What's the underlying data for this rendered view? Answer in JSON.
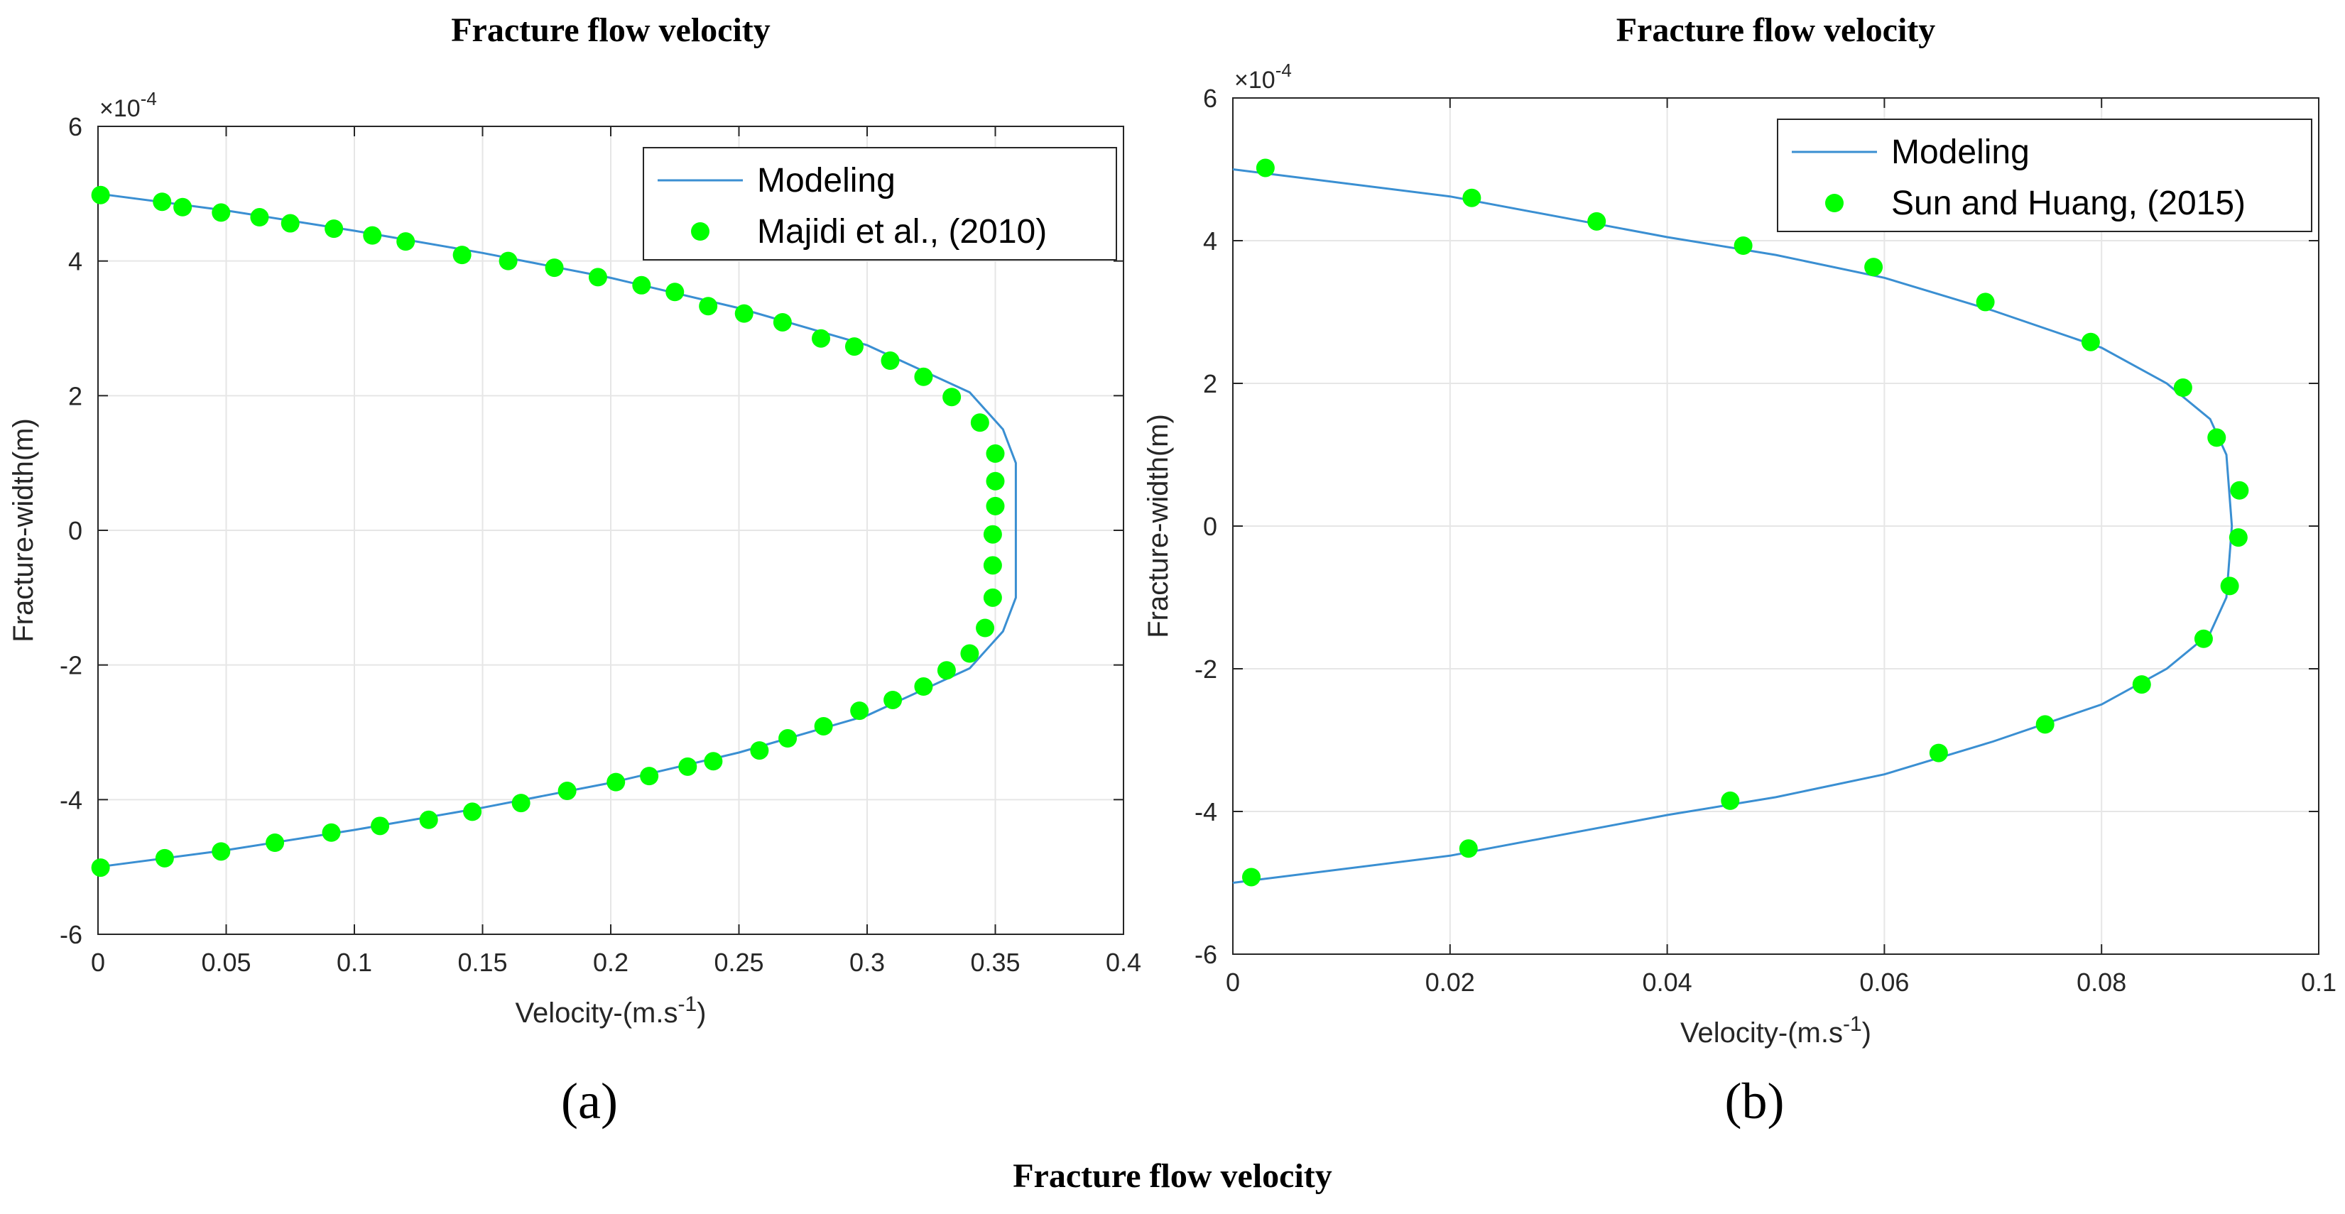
{
  "figure": {
    "caption": "Fracture flow velocity",
    "colors": {
      "model": "#3a8fd2",
      "observed": "#00ff00"
    }
  },
  "chart_data": [
    {
      "type": "line",
      "panel_label": "(a)",
      "title": "Fracture flow velocity",
      "xlabel": "Velocity-(m.s",
      "xlabel_sup": "-1",
      "xlabel_tail": ")",
      "ylabel": "Fracture-width(m)",
      "y_exponent": "×10",
      "y_exponent_sup": "-4",
      "xlim": [
        0,
        0.4
      ],
      "ylim": [
        -6,
        6
      ],
      "x_ticks": [
        0,
        0.05,
        0.1,
        0.15,
        0.2,
        0.25,
        0.3,
        0.35,
        0.4
      ],
      "x_tick_labels": [
        "0",
        "0.05",
        "0.1",
        "0.15",
        "0.2",
        "0.25",
        "0.3",
        "0.35",
        "0.4"
      ],
      "y_ticks": [
        -6,
        -4,
        -2,
        0,
        2,
        4,
        6
      ],
      "y_tick_labels": [
        "-6",
        "-4",
        "-2",
        "0",
        "2",
        "4",
        "6"
      ],
      "grid": true,
      "legend_position": "top-right",
      "series": [
        {
          "name": "Modeling",
          "kind": "line",
          "points": [
            [
              0,
              5
            ],
            [
              0.05,
              4.75
            ],
            [
              0.1,
              4.45
            ],
            [
              0.15,
              4.12
            ],
            [
              0.2,
              3.75
            ],
            [
              0.25,
              3.3
            ],
            [
              0.3,
              2.75
            ],
            [
              0.34,
              2.05
            ],
            [
              0.353,
              1.5
            ],
            [
              0.358,
              1.0
            ],
            [
              0.358,
              0
            ],
            [
              0.358,
              -1.0
            ],
            [
              0.353,
              -1.5
            ],
            [
              0.34,
              -2.05
            ],
            [
              0.3,
              -2.75
            ],
            [
              0.25,
              -3.3
            ],
            [
              0.2,
              -3.75
            ],
            [
              0.15,
              -4.12
            ],
            [
              0.1,
              -4.45
            ],
            [
              0.05,
              -4.75
            ],
            [
              0,
              -5
            ]
          ]
        },
        {
          "name": "Majidi et al., (2010)",
          "kind": "scatter",
          "points": [
            [
              0.001,
              4.98
            ],
            [
              0.025,
              4.88
            ],
            [
              0.033,
              4.8
            ],
            [
              0.048,
              4.72
            ],
            [
              0.063,
              4.65
            ],
            [
              0.075,
              4.56
            ],
            [
              0.092,
              4.48
            ],
            [
              0.107,
              4.38
            ],
            [
              0.12,
              4.29
            ],
            [
              0.142,
              4.09
            ],
            [
              0.16,
              4.0
            ],
            [
              0.178,
              3.9
            ],
            [
              0.195,
              3.76
            ],
            [
              0.212,
              3.64
            ],
            [
              0.225,
              3.54
            ],
            [
              0.238,
              3.33
            ],
            [
              0.252,
              3.22
            ],
            [
              0.267,
              3.09
            ],
            [
              0.282,
              2.85
            ],
            [
              0.295,
              2.73
            ],
            [
              0.309,
              2.52
            ],
            [
              0.322,
              2.28
            ],
            [
              0.333,
              1.98
            ],
            [
              0.344,
              1.6
            ],
            [
              0.35,
              1.14
            ],
            [
              0.35,
              0.73
            ],
            [
              0.35,
              0.36
            ],
            [
              0.349,
              -0.06
            ],
            [
              0.349,
              -0.52
            ],
            [
              0.349,
              -1.0
            ],
            [
              0.346,
              -1.45
            ],
            [
              0.34,
              -1.83
            ],
            [
              0.331,
              -2.08
            ],
            [
              0.322,
              -2.32
            ],
            [
              0.31,
              -2.52
            ],
            [
              0.297,
              -2.68
            ],
            [
              0.283,
              -2.91
            ],
            [
              0.269,
              -3.09
            ],
            [
              0.258,
              -3.27
            ],
            [
              0.24,
              -3.43
            ],
            [
              0.23,
              -3.51
            ],
            [
              0.215,
              -3.65
            ],
            [
              0.202,
              -3.74
            ],
            [
              0.183,
              -3.87
            ],
            [
              0.165,
              -4.05
            ],
            [
              0.146,
              -4.18
            ],
            [
              0.129,
              -4.3
            ],
            [
              0.11,
              -4.39
            ],
            [
              0.091,
              -4.49
            ],
            [
              0.069,
              -4.64
            ],
            [
              0.048,
              -4.77
            ],
            [
              0.026,
              -4.87
            ],
            [
              0.001,
              -5.01
            ]
          ]
        }
      ]
    },
    {
      "type": "line",
      "panel_label": "(b)",
      "title": "Fracture flow velocity",
      "xlabel": "Velocity-(m.s",
      "xlabel_sup": "-1",
      "xlabel_tail": ")",
      "ylabel": "Fracture-width(m)",
      "y_exponent": "×10",
      "y_exponent_sup": "-4",
      "xlim": [
        0,
        0.1
      ],
      "ylim": [
        -6,
        6
      ],
      "x_ticks": [
        0,
        0.02,
        0.04,
        0.06,
        0.08,
        0.1
      ],
      "x_tick_labels": [
        "0",
        "0.02",
        "0.04",
        "0.06",
        "0.08",
        "0.1"
      ],
      "y_ticks": [
        -6,
        -4,
        -2,
        0,
        2,
        4,
        6
      ],
      "y_tick_labels": [
        "-6",
        "-4",
        "-2",
        "0",
        "2",
        "4",
        "6"
      ],
      "grid": true,
      "legend_position": "top-right",
      "series": [
        {
          "name": "Modeling",
          "kind": "line",
          "points": [
            [
              0,
              5
            ],
            [
              0.02,
              4.62
            ],
            [
              0.04,
              4.05
            ],
            [
              0.05,
              3.8
            ],
            [
              0.06,
              3.48
            ],
            [
              0.07,
              3.02
            ],
            [
              0.08,
              2.5
            ],
            [
              0.086,
              2.0
            ],
            [
              0.09,
              1.5
            ],
            [
              0.0915,
              1.0
            ],
            [
              0.092,
              0
            ],
            [
              0.0915,
              -1.0
            ],
            [
              0.09,
              -1.5
            ],
            [
              0.086,
              -2.0
            ],
            [
              0.08,
              -2.5
            ],
            [
              0.07,
              -3.02
            ],
            [
              0.06,
              -3.48
            ],
            [
              0.05,
              -3.8
            ],
            [
              0.04,
              -4.05
            ],
            [
              0.02,
              -4.62
            ],
            [
              0,
              -5
            ]
          ]
        },
        {
          "name": "Sun and Huang, (2015)",
          "kind": "scatter",
          "points": [
            [
              0.003,
              5.02
            ],
            [
              0.022,
              4.6
            ],
            [
              0.0335,
              4.27
            ],
            [
              0.047,
              3.93
            ],
            [
              0.059,
              3.63
            ],
            [
              0.0693,
              3.14
            ],
            [
              0.079,
              2.58
            ],
            [
              0.0875,
              1.94
            ],
            [
              0.0906,
              1.24
            ],
            [
              0.0927,
              0.5
            ],
            [
              0.0926,
              -0.16
            ],
            [
              0.0918,
              -0.84
            ],
            [
              0.0894,
              -1.58
            ],
            [
              0.0837,
              -2.22
            ],
            [
              0.0748,
              -2.78
            ],
            [
              0.065,
              -3.18
            ],
            [
              0.0458,
              -3.85
            ],
            [
              0.0217,
              -4.52
            ],
            [
              0.0017,
              -4.92
            ]
          ]
        }
      ]
    }
  ]
}
